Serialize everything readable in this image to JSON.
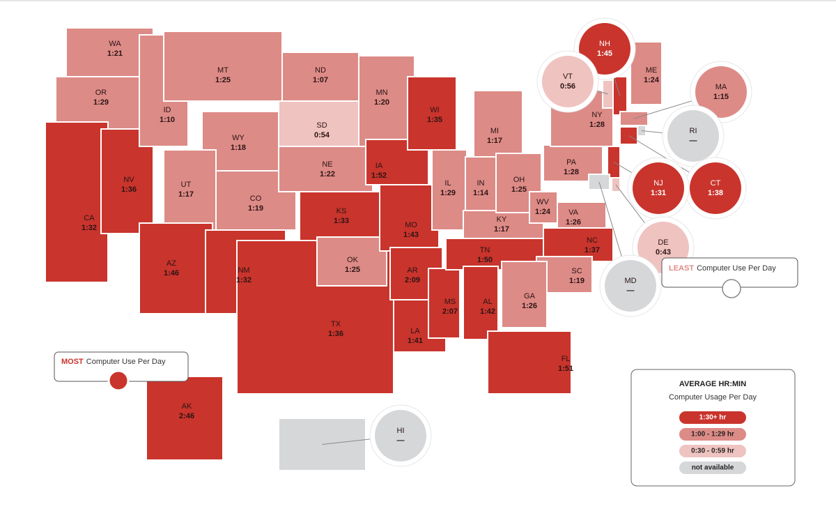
{
  "states": [
    {
      "abbr": "WA",
      "time": "1:21",
      "color": "#dd8b87"
    },
    {
      "abbr": "OR",
      "time": "1:29",
      "color": "#dd8b87"
    },
    {
      "abbr": "CA",
      "time": "1:32",
      "color": "#c9342c"
    },
    {
      "abbr": "NV",
      "time": "1:36",
      "color": "#c9342c"
    },
    {
      "abbr": "ID",
      "time": "1:10",
      "color": "#dd8b87"
    },
    {
      "abbr": "MT",
      "time": "1:25",
      "color": "#dd8b87"
    },
    {
      "abbr": "WY",
      "time": "1:18",
      "color": "#dd8b87"
    },
    {
      "abbr": "UT",
      "time": "1:17",
      "color": "#dd8b87"
    },
    {
      "abbr": "CO",
      "time": "1:19",
      "color": "#dd8b87"
    },
    {
      "abbr": "AZ",
      "time": "1:46",
      "color": "#c9342c"
    },
    {
      "abbr": "NM",
      "time": "1:32",
      "color": "#c9342c"
    },
    {
      "abbr": "ND",
      "time": "1:07",
      "color": "#dd8b87"
    },
    {
      "abbr": "SD",
      "time": "0:54",
      "color": "#efc3c0"
    },
    {
      "abbr": "NE",
      "time": "1:22",
      "color": "#dd8b87"
    },
    {
      "abbr": "TX",
      "time": "1:36",
      "color": "#c9342c"
    },
    {
      "abbr": "KS",
      "time": "1:33",
      "color": "#c9342c"
    },
    {
      "abbr": "OK",
      "time": "1:25",
      "color": "#dd8b87"
    },
    {
      "abbr": "MN",
      "time": "1:20",
      "color": "#dd8b87"
    },
    {
      "abbr": "IA",
      "time": "1:52",
      "color": "#c9342c"
    },
    {
      "abbr": "MO",
      "time": "1:43",
      "color": "#c9342c"
    },
    {
      "abbr": "AR",
      "time": "2:09",
      "color": "#c9342c"
    },
    {
      "abbr": "LA",
      "time": "1:41",
      "color": "#c9342c"
    },
    {
      "abbr": "WI",
      "time": "1:35",
      "color": "#c9342c"
    },
    {
      "abbr": "IL",
      "time": "1:29",
      "color": "#dd8b87"
    },
    {
      "abbr": "MS",
      "time": "2:07",
      "color": "#c9342c"
    },
    {
      "abbr": "MI",
      "time": "1:17",
      "color": "#dd8b87"
    },
    {
      "abbr": "IN",
      "time": "1:14",
      "color": "#dd8b87"
    },
    {
      "abbr": "KY",
      "time": "1:17",
      "color": "#dd8b87"
    },
    {
      "abbr": "TN",
      "time": "1:50",
      "color": "#c9342c"
    },
    {
      "abbr": "AL",
      "time": "1:42",
      "color": "#c9342c"
    },
    {
      "abbr": "OH",
      "time": "1:25",
      "color": "#dd8b87"
    },
    {
      "abbr": "WV",
      "time": "1:24",
      "color": "#dd8b87"
    },
    {
      "abbr": "VA",
      "time": "1:26",
      "color": "#dd8b87"
    },
    {
      "abbr": "NC",
      "time": "1:37",
      "color": "#c9342c"
    },
    {
      "abbr": "SC",
      "time": "1:19",
      "color": "#dd8b87"
    },
    {
      "abbr": "GA",
      "time": "1:26",
      "color": "#dd8b87"
    },
    {
      "abbr": "FL",
      "time": "1:51",
      "color": "#c9342c"
    },
    {
      "abbr": "PA",
      "time": "1:28",
      "color": "#dd8b87"
    },
    {
      "abbr": "NY",
      "time": "1:28",
      "color": "#dd8b87"
    },
    {
      "abbr": "ME",
      "time": "1:24",
      "color": "#dd8b87"
    },
    {
      "abbr": "NH",
      "time": "1:45",
      "color": "#c9342c"
    },
    {
      "abbr": "VT",
      "time": "0:56",
      "color": "#efc3c0"
    },
    {
      "abbr": "MA",
      "time": "1:15",
      "color": "#dd8b87"
    },
    {
      "abbr": "RI",
      "time": "—",
      "color": "#d5d7d9"
    },
    {
      "abbr": "CT",
      "time": "1:38",
      "color": "#c9342c"
    },
    {
      "abbr": "NJ",
      "time": "1:31",
      "color": "#c9342c"
    },
    {
      "abbr": "DE",
      "time": "0:43",
      "color": "#efc3c0"
    },
    {
      "abbr": "MD",
      "time": "—",
      "color": "#d5d7d9"
    },
    {
      "abbr": "AK",
      "time": "2:46",
      "color": "#c9342c"
    },
    {
      "abbr": "HI",
      "time": "—",
      "color": "#d5d7d9"
    }
  ],
  "legend": {
    "title": "AVERAGE HR:MIN",
    "subtitle": "Computer Usage Per Day",
    "items": [
      {
        "label": "1:30+ hr",
        "color": "#c9342c"
      },
      {
        "label": "1:00 - 1:29 hr",
        "color": "#dd8b87"
      },
      {
        "label": "0:30 - 0:59 hr",
        "color": "#efc3c0"
      },
      {
        "label": "not available",
        "color": "#d5d7d9"
      }
    ]
  },
  "callouts": {
    "most": {
      "emphasis": "MOST",
      "text": "Computer Use Per Day"
    },
    "least": {
      "emphasis": "LEAST",
      "text": "Computer Use Per Day"
    }
  }
}
